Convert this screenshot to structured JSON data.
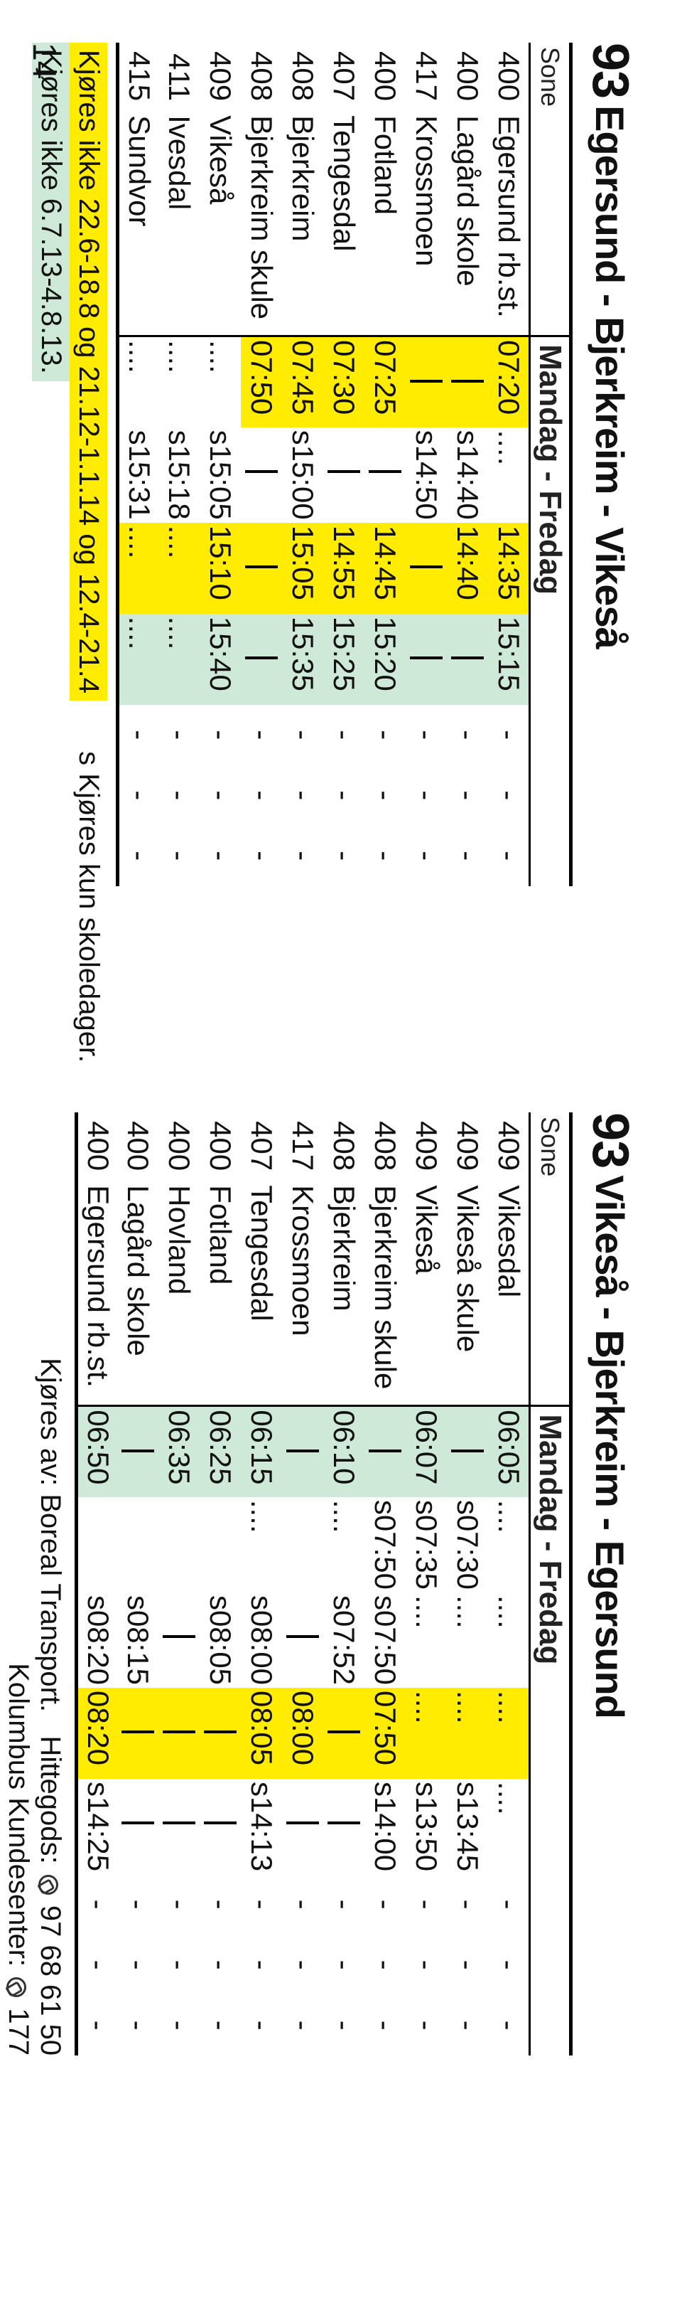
{
  "page_number": "14",
  "table_a": {
    "route_number": "93",
    "route_name": "Egersund - Bjerkreim - Vikeså",
    "sone_header": "Sone",
    "day_header": "Mandag - Fredag",
    "columns": 7,
    "rows": [
      {
        "sone": "400",
        "stop": "Egersund rb.st.",
        "c": [
          {
            "t": "07:20",
            "cls": "hl-yellow"
          },
          {
            "t": "....",
            "cls": "dots"
          },
          {
            "t": "14:35",
            "cls": "hl-yellow"
          },
          {
            "t": "15:15",
            "cls": "hl-green"
          },
          {
            "t": "-"
          },
          {
            "t": "-"
          },
          {
            "t": "-"
          }
        ]
      },
      {
        "sone": "400",
        "stop": "Lagård skole",
        "c": [
          {
            "t": "|pass",
            "cls": "hl-yellow"
          },
          {
            "t": "s14:40"
          },
          {
            "t": "14:40",
            "cls": "hl-yellow"
          },
          {
            "t": "|pass",
            "cls": "hl-green"
          },
          {
            "t": "-"
          },
          {
            "t": "-"
          },
          {
            "t": "-"
          }
        ]
      },
      {
        "sone": "417",
        "stop": "Krossmoen",
        "c": [
          {
            "t": "|pass",
            "cls": "hl-yellow"
          },
          {
            "t": "s14:50"
          },
          {
            "t": "|pass",
            "cls": "hl-yellow"
          },
          {
            "t": "|pass",
            "cls": "hl-green"
          },
          {
            "t": "-"
          },
          {
            "t": "-"
          },
          {
            "t": "-"
          }
        ]
      },
      {
        "sone": "400",
        "stop": "Fotland",
        "c": [
          {
            "t": "07:25",
            "cls": "hl-yellow"
          },
          {
            "t": "|pass"
          },
          {
            "t": "14:45",
            "cls": "hl-yellow"
          },
          {
            "t": "15:20",
            "cls": "hl-green"
          },
          {
            "t": "-"
          },
          {
            "t": "-"
          },
          {
            "t": "-"
          }
        ]
      },
      {
        "sone": "407",
        "stop": "Tengesdal",
        "c": [
          {
            "t": "07:30",
            "cls": "hl-yellow"
          },
          {
            "t": "|pass"
          },
          {
            "t": "14:55",
            "cls": "hl-yellow"
          },
          {
            "t": "15:25",
            "cls": "hl-green"
          },
          {
            "t": "-"
          },
          {
            "t": "-"
          },
          {
            "t": "-"
          }
        ]
      },
      {
        "sone": "408",
        "stop": "Bjerkreim",
        "c": [
          {
            "t": "07:45",
            "cls": "hl-yellow"
          },
          {
            "t": "s15:00"
          },
          {
            "t": "15:05",
            "cls": "hl-yellow"
          },
          {
            "t": "15:35",
            "cls": "hl-green"
          },
          {
            "t": "-"
          },
          {
            "t": "-"
          },
          {
            "t": "-"
          }
        ]
      },
      {
        "sone": "408",
        "stop": "Bjerkreim skule",
        "c": [
          {
            "t": "07:50",
            "cls": "hl-yellow"
          },
          {
            "t": "|pass"
          },
          {
            "t": "|pass",
            "cls": "hl-yellow"
          },
          {
            "t": "|pass",
            "cls": "hl-green"
          },
          {
            "t": "-"
          },
          {
            "t": "-"
          },
          {
            "t": "-"
          }
        ]
      },
      {
        "sone": "409",
        "stop": "Vikeså",
        "c": [
          {
            "t": "...."
          },
          {
            "t": "s15:05"
          },
          {
            "t": "15:10",
            "cls": "hl-yellow"
          },
          {
            "t": "15:40",
            "cls": "hl-green"
          },
          {
            "t": "-"
          },
          {
            "t": "-"
          },
          {
            "t": "-"
          }
        ]
      },
      {
        "sone": "411",
        "stop": "Ivesdal",
        "c": [
          {
            "t": "...."
          },
          {
            "t": "s15:18"
          },
          {
            "t": "....",
            "cls": "hl-yellow"
          },
          {
            "t": "....",
            "cls": "hl-green"
          },
          {
            "t": "-"
          },
          {
            "t": "-"
          },
          {
            "t": "-"
          }
        ]
      },
      {
        "sone": "415",
        "stop": "Sundvor",
        "c": [
          {
            "t": "...."
          },
          {
            "t": "s15:31"
          },
          {
            "t": "....",
            "cls": "hl-yellow"
          },
          {
            "t": "....",
            "cls": "hl-green"
          },
          {
            "t": "-"
          },
          {
            "t": "-"
          },
          {
            "t": "-"
          }
        ]
      }
    ],
    "legend_yellow": "Kjøres ikke 22.6-18.8 og 21.12-1.1.14 og 12.4-21.4",
    "legend_green": "Kjøres ikke 6.7.13-4.8.13.",
    "legend_right": "s  Kjøres kun skoledager."
  },
  "table_b": {
    "route_number": "93",
    "route_name": "Vikeså - Bjerkreim - Egersund",
    "sone_header": "Sone",
    "day_header": "Mandag - Fredag",
    "columns": 8,
    "rows": [
      {
        "sone": "409",
        "stop": "Vikesdal",
        "c": [
          {
            "t": "06:05",
            "cls": "hl-green"
          },
          {
            "t": "...."
          },
          {
            "t": "...."
          },
          {
            "t": "....",
            "cls": "hl-yellow"
          },
          {
            "t": "...."
          },
          {
            "t": "-"
          },
          {
            "t": "-"
          },
          {
            "t": "-"
          }
        ]
      },
      {
        "sone": "409",
        "stop": "Vikeså skule",
        "c": [
          {
            "t": "|pass",
            "cls": "hl-green"
          },
          {
            "t": "s07:30"
          },
          {
            "t": "...."
          },
          {
            "t": "....",
            "cls": "hl-yellow"
          },
          {
            "t": "s13:45"
          },
          {
            "t": "-"
          },
          {
            "t": "-"
          },
          {
            "t": "-"
          }
        ]
      },
      {
        "sone": "409",
        "stop": "Vikeså",
        "c": [
          {
            "t": "06:07",
            "cls": "hl-green"
          },
          {
            "t": "s07:35"
          },
          {
            "t": "...."
          },
          {
            "t": "....",
            "cls": "hl-yellow"
          },
          {
            "t": "s13:50"
          },
          {
            "t": "-"
          },
          {
            "t": "-"
          },
          {
            "t": "-"
          }
        ]
      },
      {
        "sone": "408",
        "stop": "Bjerkreim skule",
        "c": [
          {
            "t": "|pass",
            "cls": "hl-green"
          },
          {
            "t": "s07:50"
          },
          {
            "t": "s07:50"
          },
          {
            "t": "07:50",
            "cls": "hl-yellow"
          },
          {
            "t": "s14:00"
          },
          {
            "t": "-"
          },
          {
            "t": "-"
          },
          {
            "t": "-"
          }
        ]
      },
      {
        "sone": "408",
        "stop": "Bjerkreim",
        "c": [
          {
            "t": "06:10",
            "cls": "hl-green"
          },
          {
            "t": "...."
          },
          {
            "t": "s07:52"
          },
          {
            "t": "|pass",
            "cls": "hl-yellow"
          },
          {
            "t": "|pass"
          },
          {
            "t": "-"
          },
          {
            "t": "-"
          },
          {
            "t": "-"
          }
        ]
      },
      {
        "sone": "417",
        "stop": "Krossmoen",
        "c": [
          {
            "t": "|pass",
            "cls": "hl-green"
          },
          {
            "t": ""
          },
          {
            "t": "|pass"
          },
          {
            "t": "08:00",
            "cls": "hl-yellow"
          },
          {
            "t": "|pass"
          },
          {
            "t": "-"
          },
          {
            "t": "-"
          },
          {
            "t": "-"
          }
        ]
      },
      {
        "sone": "407",
        "stop": "Tengesdal",
        "c": [
          {
            "t": "06:15",
            "cls": "hl-green"
          },
          {
            "t": "...."
          },
          {
            "t": "s08:00"
          },
          {
            "t": "08:05",
            "cls": "hl-yellow"
          },
          {
            "t": "s14:13"
          },
          {
            "t": "-"
          },
          {
            "t": "-"
          },
          {
            "t": "-"
          }
        ]
      },
      {
        "sone": "400",
        "stop": "Fotland",
        "c": [
          {
            "t": "06:25",
            "cls": "hl-green"
          },
          {
            "t": ""
          },
          {
            "t": "s08:05"
          },
          {
            "t": "|pass",
            "cls": "hl-yellow"
          },
          {
            "t": "|pass"
          },
          {
            "t": "-"
          },
          {
            "t": "-"
          },
          {
            "t": "-"
          }
        ]
      },
      {
        "sone": "400",
        "stop": "Hovland",
        "c": [
          {
            "t": "06:35",
            "cls": "hl-green"
          },
          {
            "t": ""
          },
          {
            "t": "|pass"
          },
          {
            "t": "|pass",
            "cls": "hl-yellow"
          },
          {
            "t": "|pass"
          },
          {
            "t": "-"
          },
          {
            "t": "-"
          },
          {
            "t": "-"
          }
        ]
      },
      {
        "sone": "400",
        "stop": "Lagård skole",
        "c": [
          {
            "t": "|pass",
            "cls": "hl-green"
          },
          {
            "t": ""
          },
          {
            "t": "s08:15"
          },
          {
            "t": "|pass",
            "cls": "hl-yellow"
          },
          {
            "t": "|pass"
          },
          {
            "t": "-"
          },
          {
            "t": "-"
          },
          {
            "t": "-"
          }
        ]
      },
      {
        "sone": "400",
        "stop": "Egersund rb.st.",
        "c": [
          {
            "t": "06:50",
            "cls": "hl-green"
          },
          {
            "t": ""
          },
          {
            "t": "s08:20"
          },
          {
            "t": "08:20",
            "cls": "hl-yellow"
          },
          {
            "t": "s14:25"
          },
          {
            "t": "-"
          },
          {
            "t": "-"
          },
          {
            "t": "-"
          }
        ]
      }
    ],
    "footer_operator": "Kjøres av: Boreal Transport.",
    "footer_lost": "Hittegods:",
    "footer_lost_phone": "97 68 61 50",
    "footer_ks": "Kolumbus Kundesenter:",
    "footer_ks_phone": "177"
  }
}
